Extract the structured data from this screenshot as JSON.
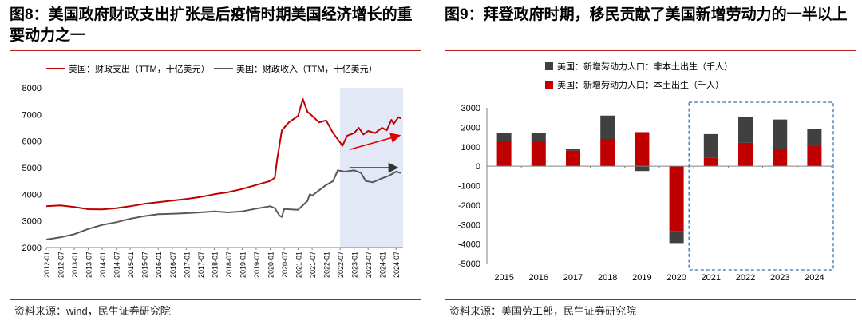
{
  "left": {
    "title": "图8：美国政府财政支出扩张是后疫情时期美国经济增长的重要动力之一",
    "source": "资料来源：wind，民生证券研究院"
  },
  "right": {
    "title": "图9：拜登政府时期，移民贡献了美国新增劳动力的一半以上",
    "source": "资料来源：美国劳工部，民生证券研究院"
  },
  "chart_data": [
    {
      "type": "line",
      "title": "",
      "xlabel": "",
      "ylabel": "",
      "ylim": [
        2000,
        8000
      ],
      "yticks": [
        2000,
        3000,
        4000,
        5000,
        6000,
        7000,
        8000
      ],
      "xtick_labels": [
        "2012-01",
        "2012-07",
        "2013-01",
        "2013-07",
        "2014-01",
        "2014-07",
        "2015-01",
        "2015-07",
        "2016-01",
        "2016-07",
        "2017-01",
        "2017-07",
        "2018-01",
        "2018-07",
        "2019-01",
        "2019-07",
        "2020-01",
        "2020-07",
        "2021-01",
        "2021-07",
        "2022-01",
        "2022-07",
        "2023-01",
        "2023-07",
        "2024-01",
        "2024-07"
      ],
      "grid": false,
      "legend_position": "top-left",
      "highlight_region": {
        "from": "2022-07",
        "to": "2024-10",
        "color": "#e3e8f6"
      },
      "colors": {
        "expenditure": "#c00000",
        "revenue": "#595959"
      },
      "series": [
        {
          "name": "美国：财政支出（TTM，十亿美元）",
          "color": "#c00000",
          "points": [
            [
              "2012-01",
              3550
            ],
            [
              "2012-07",
              3580
            ],
            [
              "2013-01",
              3520
            ],
            [
              "2013-07",
              3440
            ],
            [
              "2014-01",
              3430
            ],
            [
              "2014-07",
              3480
            ],
            [
              "2015-01",
              3550
            ],
            [
              "2015-07",
              3640
            ],
            [
              "2016-01",
              3700
            ],
            [
              "2016-07",
              3760
            ],
            [
              "2017-01",
              3820
            ],
            [
              "2017-07",
              3900
            ],
            [
              "2018-01",
              4000
            ],
            [
              "2018-07",
              4080
            ],
            [
              "2019-01",
              4200
            ],
            [
              "2019-07",
              4350
            ],
            [
              "2020-01",
              4500
            ],
            [
              "2020-03",
              4620
            ],
            [
              "2020-04",
              5300
            ],
            [
              "2020-06",
              6400
            ],
            [
              "2020-09",
              6700
            ],
            [
              "2021-01",
              6950
            ],
            [
              "2021-03",
              7580
            ],
            [
              "2021-05",
              7100
            ],
            [
              "2021-07",
              6950
            ],
            [
              "2021-10",
              6700
            ],
            [
              "2022-01",
              6780
            ],
            [
              "2022-04",
              6300
            ],
            [
              "2022-07",
              5950
            ],
            [
              "2022-08",
              5820
            ],
            [
              "2022-10",
              6200
            ],
            [
              "2023-01",
              6300
            ],
            [
              "2023-03",
              6500
            ],
            [
              "2023-05",
              6250
            ],
            [
              "2023-07",
              6380
            ],
            [
              "2023-10",
              6300
            ],
            [
              "2024-01",
              6500
            ],
            [
              "2024-03",
              6400
            ],
            [
              "2024-05",
              6800
            ],
            [
              "2024-06",
              6650
            ],
            [
              "2024-08",
              6900
            ],
            [
              "2024-09",
              6850
            ]
          ]
        },
        {
          "name": "美国：财政收入（TTM，十亿美元）",
          "color": "#595959",
          "points": [
            [
              "2012-01",
              2300
            ],
            [
              "2012-07",
              2380
            ],
            [
              "2013-01",
              2500
            ],
            [
              "2013-07",
              2700
            ],
            [
              "2014-01",
              2850
            ],
            [
              "2014-07",
              2950
            ],
            [
              "2015-01",
              3080
            ],
            [
              "2015-07",
              3180
            ],
            [
              "2016-01",
              3250
            ],
            [
              "2016-07",
              3270
            ],
            [
              "2017-01",
              3290
            ],
            [
              "2017-07",
              3320
            ],
            [
              "2018-01",
              3360
            ],
            [
              "2018-07",
              3320
            ],
            [
              "2019-01",
              3360
            ],
            [
              "2019-07",
              3460
            ],
            [
              "2020-01",
              3550
            ],
            [
              "2020-03",
              3480
            ],
            [
              "2020-05",
              3200
            ],
            [
              "2020-06",
              3150
            ],
            [
              "2020-07",
              3450
            ],
            [
              "2021-01",
              3420
            ],
            [
              "2021-05",
              3750
            ],
            [
              "2021-06",
              4000
            ],
            [
              "2021-07",
              3950
            ],
            [
              "2021-10",
              4150
            ],
            [
              "2022-01",
              4350
            ],
            [
              "2022-04",
              4500
            ],
            [
              "2022-06",
              4900
            ],
            [
              "2022-09",
              4850
            ],
            [
              "2023-01",
              4900
            ],
            [
              "2023-04",
              4800
            ],
            [
              "2023-06",
              4500
            ],
            [
              "2023-09",
              4450
            ],
            [
              "2024-01",
              4600
            ],
            [
              "2024-04",
              4700
            ],
            [
              "2024-07",
              4850
            ],
            [
              "2024-09",
              4800
            ]
          ]
        }
      ],
      "annotations": [
        {
          "kind": "arrow",
          "color": "#e00000",
          "from": [
            "2022-11",
            5680
          ],
          "to": [
            "2024-08",
            6200
          ]
        },
        {
          "kind": "arrow",
          "color": "#333333",
          "from": [
            "2022-11",
            5000
          ],
          "to": [
            "2024-07",
            5000
          ]
        }
      ]
    },
    {
      "type": "bar",
      "stacked": true,
      "title": "",
      "xlabel": "",
      "ylabel": "",
      "ylim": [
        -5000,
        3000
      ],
      "yticks": [
        -5000,
        -4000,
        -3000,
        -2000,
        -1000,
        0,
        1000,
        2000,
        3000
      ],
      "categories": [
        "2015",
        "2016",
        "2017",
        "2018",
        "2019",
        "2020",
        "2021",
        "2022",
        "2023",
        "2024"
      ],
      "grid": false,
      "legend_position": "top-left",
      "highlight_box": {
        "from": "2021",
        "to": "2024",
        "color": "#2e75b6",
        "style": "dashed"
      },
      "colors": {
        "foreign_born": "#404040",
        "native_born": "#c00000"
      },
      "series": [
        {
          "name": "美国：新增劳动力人口：非本土出生（千人）",
          "color": "#404040",
          "values": [
            400,
            400,
            100,
            1200,
            -250,
            -600,
            1200,
            1350,
            1500,
            850
          ]
        },
        {
          "name": "美国：新增劳动力人口：本土出生（千人）",
          "color": "#c00000",
          "values": [
            1300,
            1300,
            800,
            1400,
            1750,
            -3350,
            450,
            1200,
            900,
            1050
          ]
        }
      ]
    }
  ]
}
